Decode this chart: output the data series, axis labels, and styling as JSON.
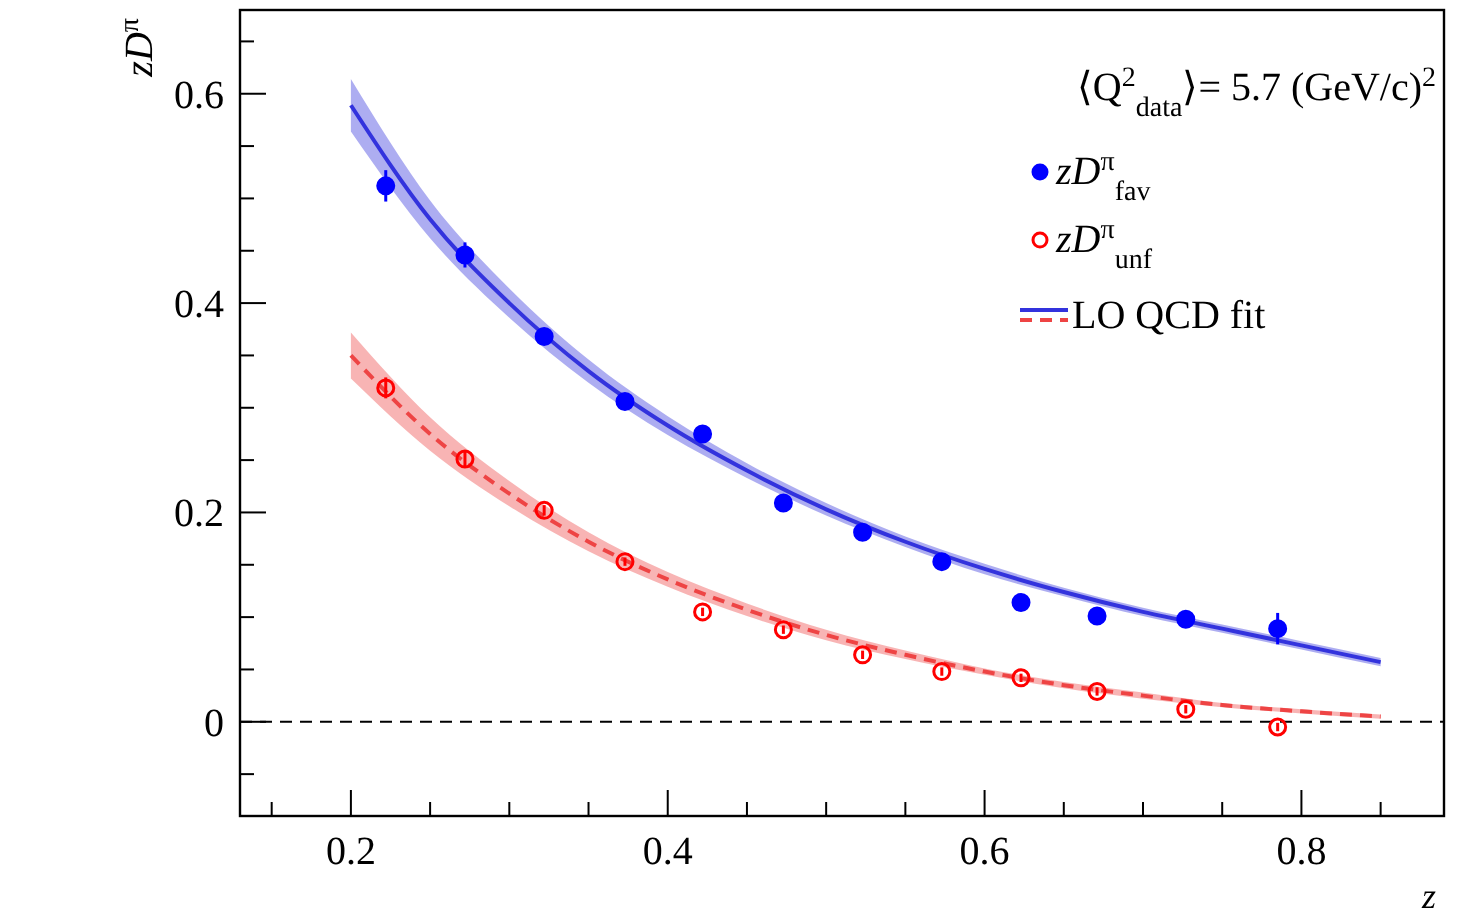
{
  "chart_data": {
    "type": "scatter",
    "xlabel": "z",
    "ylabel": "zD$^{π}$",
    "xlim": [
      0.13,
      0.89
    ],
    "ylim": [
      -0.09,
      0.68
    ],
    "xticks": [
      {
        "value": 0.15,
        "label": null
      },
      0.2,
      {
        "value": 0.25,
        "label": null
      },
      {
        "value": 0.3,
        "label": null
      },
      {
        "value": 0.35,
        "label": null
      },
      0.4,
      {
        "value": 0.45,
        "label": null
      },
      {
        "value": 0.5,
        "label": null
      },
      {
        "value": 0.55,
        "label": null
      },
      0.6,
      {
        "value": 0.65,
        "label": null
      },
      {
        "value": 0.7,
        "label": null
      },
      {
        "value": 0.75,
        "label": null
      },
      0.8,
      {
        "value": 0.85,
        "label": null
      }
    ],
    "yticks": [
      {
        "value": -0.05,
        "label": null
      },
      0,
      {
        "value": 0.05,
        "label": null
      },
      {
        "value": 0.1,
        "label": null
      },
      {
        "value": 0.15,
        "label": null
      },
      0.2,
      {
        "value": 0.25,
        "label": null
      },
      {
        "value": 0.3,
        "label": null
      },
      {
        "value": 0.35,
        "label": null
      },
      0.4,
      {
        "value": 0.45,
        "label": null
      },
      {
        "value": 0.5,
        "label": null
      },
      {
        "value": 0.55,
        "label": null
      },
      0.6,
      {
        "value": 0.65,
        "label": null
      }
    ],
    "grid": false,
    "legend": "top right",
    "annotations": [
      "⟨Q$^{2}$$_{data}$⟩= 5.7 (GeV/c)$^{2}$"
    ],
    "ref_lines": [
      {
        "axis": "y",
        "value": 0,
        "color": "#000000",
        "line_style": "dashed"
      }
    ],
    "series": [
      {
        "type": "line",
        "name": "LO QCD fit",
        "color": "#3333dd",
        "line_style": "solid",
        "x": [
          0.2,
          0.25,
          0.3,
          0.35,
          0.4,
          0.45,
          0.5,
          0.55,
          0.6,
          0.65,
          0.7,
          0.75,
          0.8,
          0.85
        ],
        "values": [
          0.589,
          0.48,
          0.4,
          0.335,
          0.283,
          0.24,
          0.203,
          0.172,
          0.146,
          0.124,
          0.105,
          0.089,
          0.073,
          0.057
        ],
        "lower": [
          0.564,
          0.462,
          0.386,
          0.324,
          0.274,
          0.233,
          0.197,
          0.167,
          0.141,
          0.12,
          0.101,
          0.085,
          0.069,
          0.053
        ],
        "upper": [
          0.614,
          0.498,
          0.414,
          0.346,
          0.292,
          0.247,
          0.209,
          0.177,
          0.151,
          0.128,
          0.109,
          0.093,
          0.077,
          0.061
        ]
      },
      {
        "type": "line",
        "color": "#ee4444",
        "line_style": "dashed",
        "x": [
          0.2,
          0.25,
          0.3,
          0.35,
          0.4,
          0.45,
          0.5,
          0.55,
          0.6,
          0.65,
          0.7,
          0.75,
          0.8,
          0.85
        ],
        "values": [
          0.35,
          0.275,
          0.218,
          0.172,
          0.136,
          0.107,
          0.083,
          0.064,
          0.048,
          0.035,
          0.025,
          0.016,
          0.01,
          0.005
        ],
        "lower": [
          0.328,
          0.259,
          0.206,
          0.163,
          0.129,
          0.101,
          0.078,
          0.06,
          0.045,
          0.032,
          0.022,
          0.014,
          0.008,
          0.003
        ],
        "upper": [
          0.372,
          0.291,
          0.23,
          0.181,
          0.143,
          0.113,
          0.088,
          0.068,
          0.051,
          0.038,
          0.028,
          0.018,
          0.012,
          0.007
        ]
      },
      {
        "name": "zD$^{π}$$_{fav}$",
        "color": "#0000ff",
        "marker": "circle",
        "x": [
          0.222,
          0.272,
          0.322,
          0.373,
          0.422,
          0.473,
          0.523,
          0.573,
          0.623,
          0.671,
          0.727,
          0.785
        ],
        "values": [
          0.512,
          0.446,
          0.368,
          0.306,
          0.275,
          0.209,
          0.181,
          0.153,
          0.114,
          0.101,
          0.098,
          0.089
        ],
        "errors": [
          0.015,
          0.012,
          0.008,
          0.006,
          0.008,
          0.005,
          0.005,
          0.005,
          0.005,
          0.006,
          0.006,
          0.015
        ]
      },
      {
        "name": "zD$^{π}$$_{unf}$",
        "color": "#ff0000",
        "marker": "circle",
        "x": [
          0.222,
          0.272,
          0.322,
          0.373,
          0.422,
          0.473,
          0.523,
          0.573,
          0.623,
          0.671,
          0.727,
          0.785
        ],
        "values": [
          0.319,
          0.251,
          0.202,
          0.153,
          0.105,
          0.088,
          0.064,
          0.048,
          0.042,
          0.029,
          0.012,
          -0.005
        ],
        "errors": [
          0.01,
          0.008,
          0.005,
          0.004,
          0.004,
          0.004,
          0.004,
          0.004,
          0.004,
          0.004,
          0.004,
          0.004
        ]
      }
    ]
  }
}
